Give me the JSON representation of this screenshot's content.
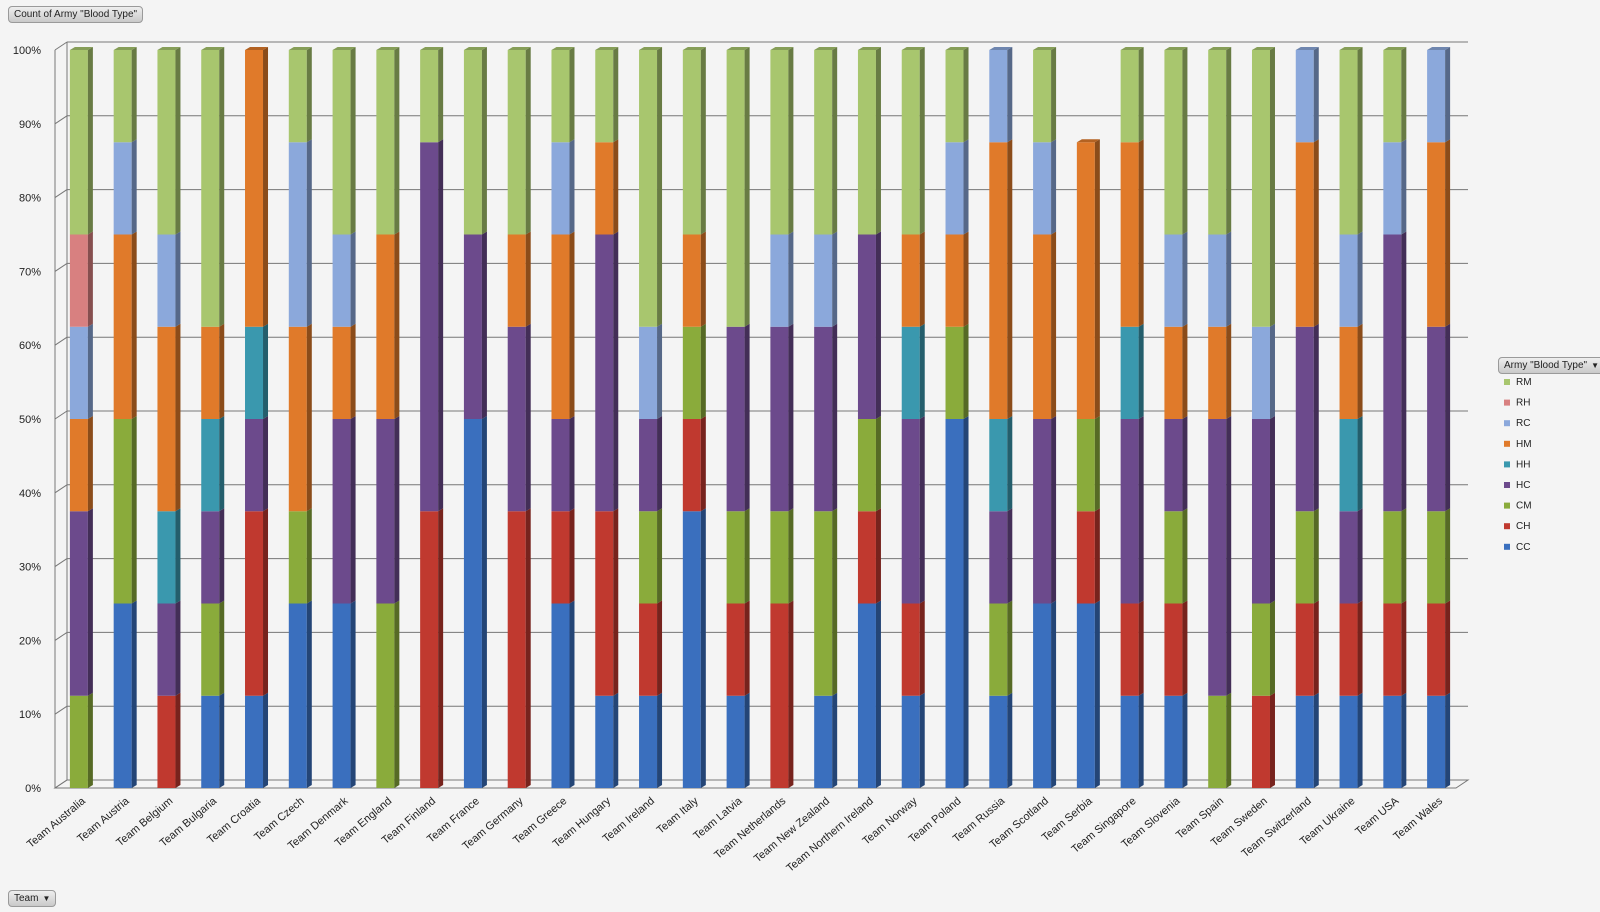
{
  "value_field_button": "Count of Army \"Blood Type\"",
  "legend_field_button": "Army \"Blood Type\"",
  "axis_field_button": "Team",
  "dropdown_icon": "chevron-down-icon",
  "chart_data": {
    "type": "bar",
    "stacked": "100%",
    "three_d": true,
    "grid": true,
    "legend_position": "right",
    "ylim": [
      0,
      1
    ],
    "yticks": [
      "0%",
      "10%",
      "20%",
      "30%",
      "40%",
      "50%",
      "60%",
      "70%",
      "80%",
      "90%",
      "100%"
    ],
    "categories": [
      "Team Australia",
      "Team Austria",
      "Team Belgium",
      "Team Bulgaria",
      "Team Croatia",
      "Team Czech",
      "Team Denmark",
      "Team England",
      "Team Finland",
      "Team France",
      "Team Germany",
      "Team Greece",
      "Team Hungary",
      "Team Ireland",
      "Team Italy",
      "Team Latvia",
      "Team Netherlands",
      "Team New Zealand",
      "Team Northern Ireland",
      "Team Norway",
      "Team Poland",
      "Team Russia",
      "Team Scotland",
      "Team Serbia",
      "Team Singapore",
      "Team Slovenia",
      "Team Spain",
      "Team Sweden",
      "Team Switzerland",
      "Team Ukraine",
      "Team USA",
      "Team Wales"
    ],
    "series": [
      {
        "name": "CC",
        "color": "#3a6fbe",
        "values": [
          0,
          0.25,
          0,
          0.125,
          0.125,
          0.25,
          0.25,
          0,
          0,
          0.5,
          0,
          0.25,
          0.125,
          0.125,
          0.375,
          0.125,
          0,
          0.125,
          0.25,
          0.125,
          0.5,
          0.125,
          0.25,
          0.25,
          0.125,
          0.125,
          0,
          0,
          0.125,
          0.125,
          0.125,
          0.125
        ]
      },
      {
        "name": "CH",
        "color": "#c0392f",
        "values": [
          0,
          0,
          0.125,
          0,
          0.25,
          0,
          0,
          0,
          0.375,
          0,
          0.375,
          0.125,
          0.25,
          0.125,
          0.125,
          0.125,
          0.25,
          0,
          0.125,
          0.125,
          0,
          0,
          0,
          0.125,
          0.125,
          0.125,
          0,
          0.125,
          0.125,
          0.125,
          0.125,
          0.125
        ]
      },
      {
        "name": "CM",
        "color": "#8aab3b",
        "values": [
          0.125,
          0.25,
          0,
          0.125,
          0,
          0.125,
          0,
          0.25,
          0,
          0,
          0,
          0,
          0,
          0.125,
          0.125,
          0.125,
          0.125,
          0.25,
          0.125,
          0,
          0.125,
          0.125,
          0,
          0.125,
          0,
          0.125,
          0.125,
          0.125,
          0.125,
          0,
          0.125,
          0.125
        ]
      },
      {
        "name": "HC",
        "color": "#6c4a8c",
        "values": [
          0.25,
          0,
          0.125,
          0.125,
          0.125,
          0,
          0.25,
          0.25,
          0.5,
          0.25,
          0.25,
          0.125,
          0.375,
          0.125,
          0,
          0.25,
          0.25,
          0.25,
          0.25,
          0.25,
          0,
          0.125,
          0.25,
          0,
          0.25,
          0.125,
          0.375,
          0.25,
          0.25,
          0.125,
          0.375,
          0.25
        ]
      },
      {
        "name": "HH",
        "color": "#3a98ae",
        "values": [
          0,
          0,
          0.125,
          0.125,
          0.125,
          0,
          0,
          0,
          0,
          0,
          0,
          0,
          0,
          0,
          0,
          0,
          0,
          0,
          0,
          0.125,
          0,
          0.125,
          0,
          0,
          0.125,
          0,
          0,
          0,
          0,
          0.125,
          0,
          0
        ]
      },
      {
        "name": "HM",
        "color": "#e07a2a",
        "values": [
          0.125,
          0.25,
          0.25,
          0.125,
          0.375,
          0.25,
          0.125,
          0.25,
          0,
          0,
          0.125,
          0.25,
          0.125,
          0,
          0.125,
          0,
          0,
          0,
          0,
          0.125,
          0.125,
          0.375,
          0.25,
          0.375,
          0.25,
          0.125,
          0.125,
          0,
          0.25,
          0.125,
          0,
          0.25
        ]
      },
      {
        "name": "RC",
        "color": "#8ba8db",
        "values": [
          0.125,
          0.125,
          0.125,
          0,
          0,
          0.25,
          0.125,
          0,
          0,
          0,
          0,
          0.125,
          0,
          0.125,
          0,
          0,
          0.125,
          0.125,
          0,
          0,
          0.125,
          0.125,
          0.125,
          0,
          0,
          0.125,
          0.125,
          0.125,
          0.125,
          0.125,
          0.125,
          0.125
        ]
      },
      {
        "name": "RH",
        "color": "#d88080",
        "values": [
          0.125,
          0,
          0,
          0,
          0,
          0,
          0,
          0,
          0,
          0,
          0,
          0,
          0,
          0,
          0,
          0,
          0,
          0,
          0,
          0,
          0,
          0,
          0,
          0,
          0,
          0,
          0,
          0,
          0,
          0,
          0,
          0
        ]
      },
      {
        "name": "RM",
        "color": "#a8c66e",
        "values": [
          0.25,
          0.125,
          0.25,
          0.375,
          0,
          0.125,
          0.25,
          0.25,
          0.125,
          0.25,
          0.25,
          0.125,
          0.125,
          0.375,
          0.25,
          0.375,
          0.25,
          0.25,
          0.25,
          0.25,
          0.125,
          0,
          0.125,
          0,
          0.125,
          0.25,
          0.25,
          0.375,
          0,
          0.25,
          0.125,
          0
        ]
      }
    ]
  }
}
